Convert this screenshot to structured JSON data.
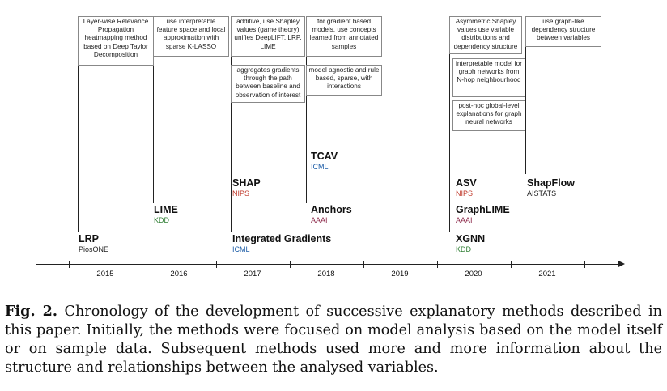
{
  "figure": {
    "years": [
      "2015",
      "2016",
      "2017",
      "2018",
      "2019",
      "2020",
      "2021"
    ],
    "venue_colors": {
      "PiosONE": "#222222",
      "KDD": "#2e7d32",
      "NIPS": "#c0392b",
      "ICML": "#1f5fa8",
      "AAAI": "#8e2c4c",
      "AISTATS": "#222222"
    },
    "methods": [
      {
        "name": "LRP",
        "venue": "PiosONE",
        "description": "Layer-wise Relevance Propagation heatmapping method based on Deep Taylor Decomposition"
      },
      {
        "name": "LIME",
        "venue": "KDD",
        "description": "use interpretable feature space and local approximation with sparse K-LASSO"
      },
      {
        "name": "SHAP",
        "venue": "NIPS",
        "description": "additive, use Shapley values (game theory) unifies DeepLIFT, LRP, LIME"
      },
      {
        "name": "Integrated Gradients",
        "venue": "ICML",
        "description": "aggregates gradients through the path between baseline and observation of interest"
      },
      {
        "name": "TCAV",
        "venue": "ICML",
        "description": "for gradient based models, use concepts learned from annotated samples"
      },
      {
        "name": "Anchors",
        "venue": "AAAI",
        "description": "model agnostic and rule based, sparse, with interactions"
      },
      {
        "name": "ASV",
        "venue": "NIPS",
        "description": "Asymmetric Shapley values use variable distributions and dependency structure"
      },
      {
        "name": "GraphLIME",
        "venue": "AAAI",
        "description": "interpretable model for graph networks from N-hop neighbourhood"
      },
      {
        "name": "XGNN",
        "venue": "KDD",
        "description": "post-hoc global-level explanations for graph neural networks"
      },
      {
        "name": "ShapFlow",
        "venue": "AISTATS",
        "description": "use graph-like dependency structure between variables"
      }
    ]
  },
  "caption": {
    "label": "Fig. 2.",
    "text": "Chronology of the development of successive explanatory methods described in this paper. Initially, the methods were focused on model analysis based on the model itself or on sample data. Subsequent methods used more and more information about the structure and relationships between the analysed variables."
  }
}
